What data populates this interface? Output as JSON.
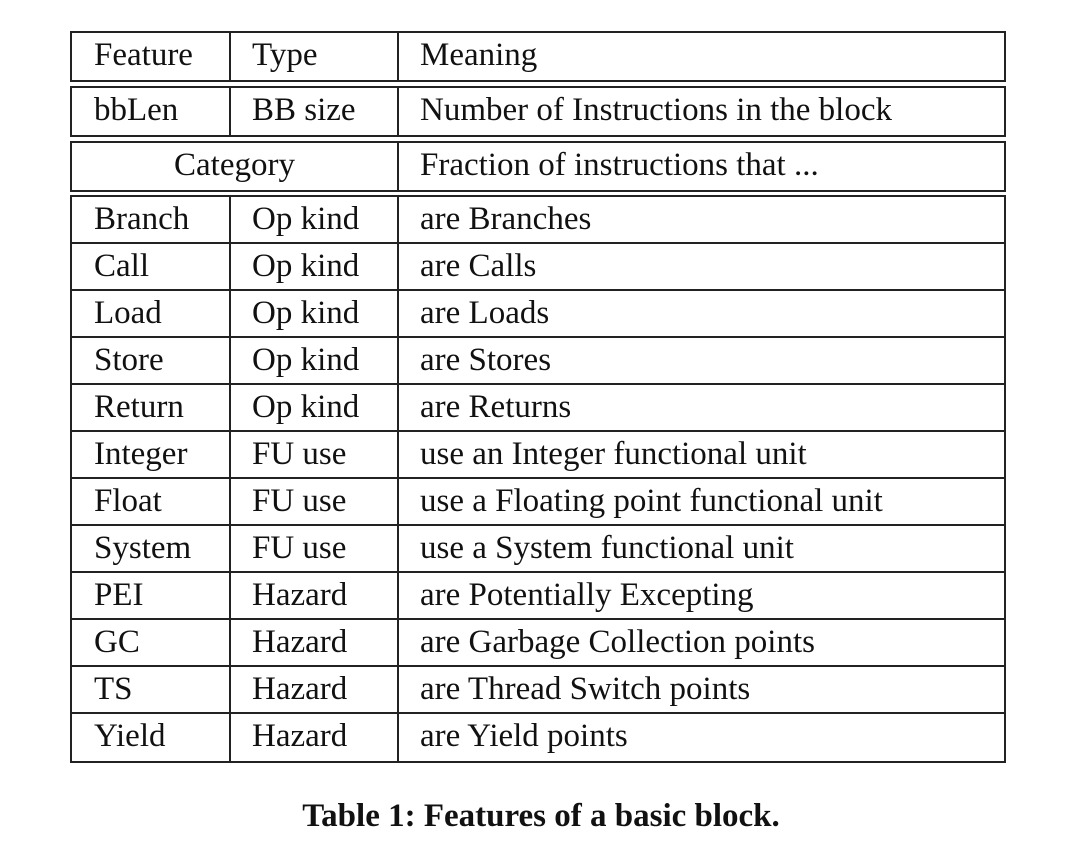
{
  "header": {
    "feature": "Feature",
    "type": "Type",
    "meaning": "Meaning"
  },
  "bb_row": {
    "feature": "bbLen",
    "type": "BB size",
    "meaning": "Number of Instructions in the block"
  },
  "category_row": {
    "category": "Category",
    "meaning": "Fraction of instructions that ..."
  },
  "rows": [
    {
      "feature": "Branch",
      "type": "Op kind",
      "meaning": "are Branches"
    },
    {
      "feature": "Call",
      "type": "Op kind",
      "meaning": "are Calls"
    },
    {
      "feature": "Load",
      "type": "Op kind",
      "meaning": "are Loads"
    },
    {
      "feature": "Store",
      "type": "Op kind",
      "meaning": "are Stores"
    },
    {
      "feature": "Return",
      "type": "Op kind",
      "meaning": "are Returns"
    },
    {
      "feature": "Integer",
      "type": "FU use",
      "meaning": "use an Integer functional unit"
    },
    {
      "feature": "Float",
      "type": "FU use",
      "meaning": "use a Floating point functional unit"
    },
    {
      "feature": "System",
      "type": "FU use",
      "meaning": "use a System functional unit"
    },
    {
      "feature": "PEI",
      "type": "Hazard",
      "meaning": "are Potentially Excepting"
    },
    {
      "feature": "GC",
      "type": "Hazard",
      "meaning": "are Garbage Collection points"
    },
    {
      "feature": "TS",
      "type": "Hazard",
      "meaning": "are Thread Switch points"
    },
    {
      "feature": "Yield",
      "type": "Hazard",
      "meaning": "are Yield points"
    }
  ],
  "caption": "Table 1: Features of a basic block."
}
